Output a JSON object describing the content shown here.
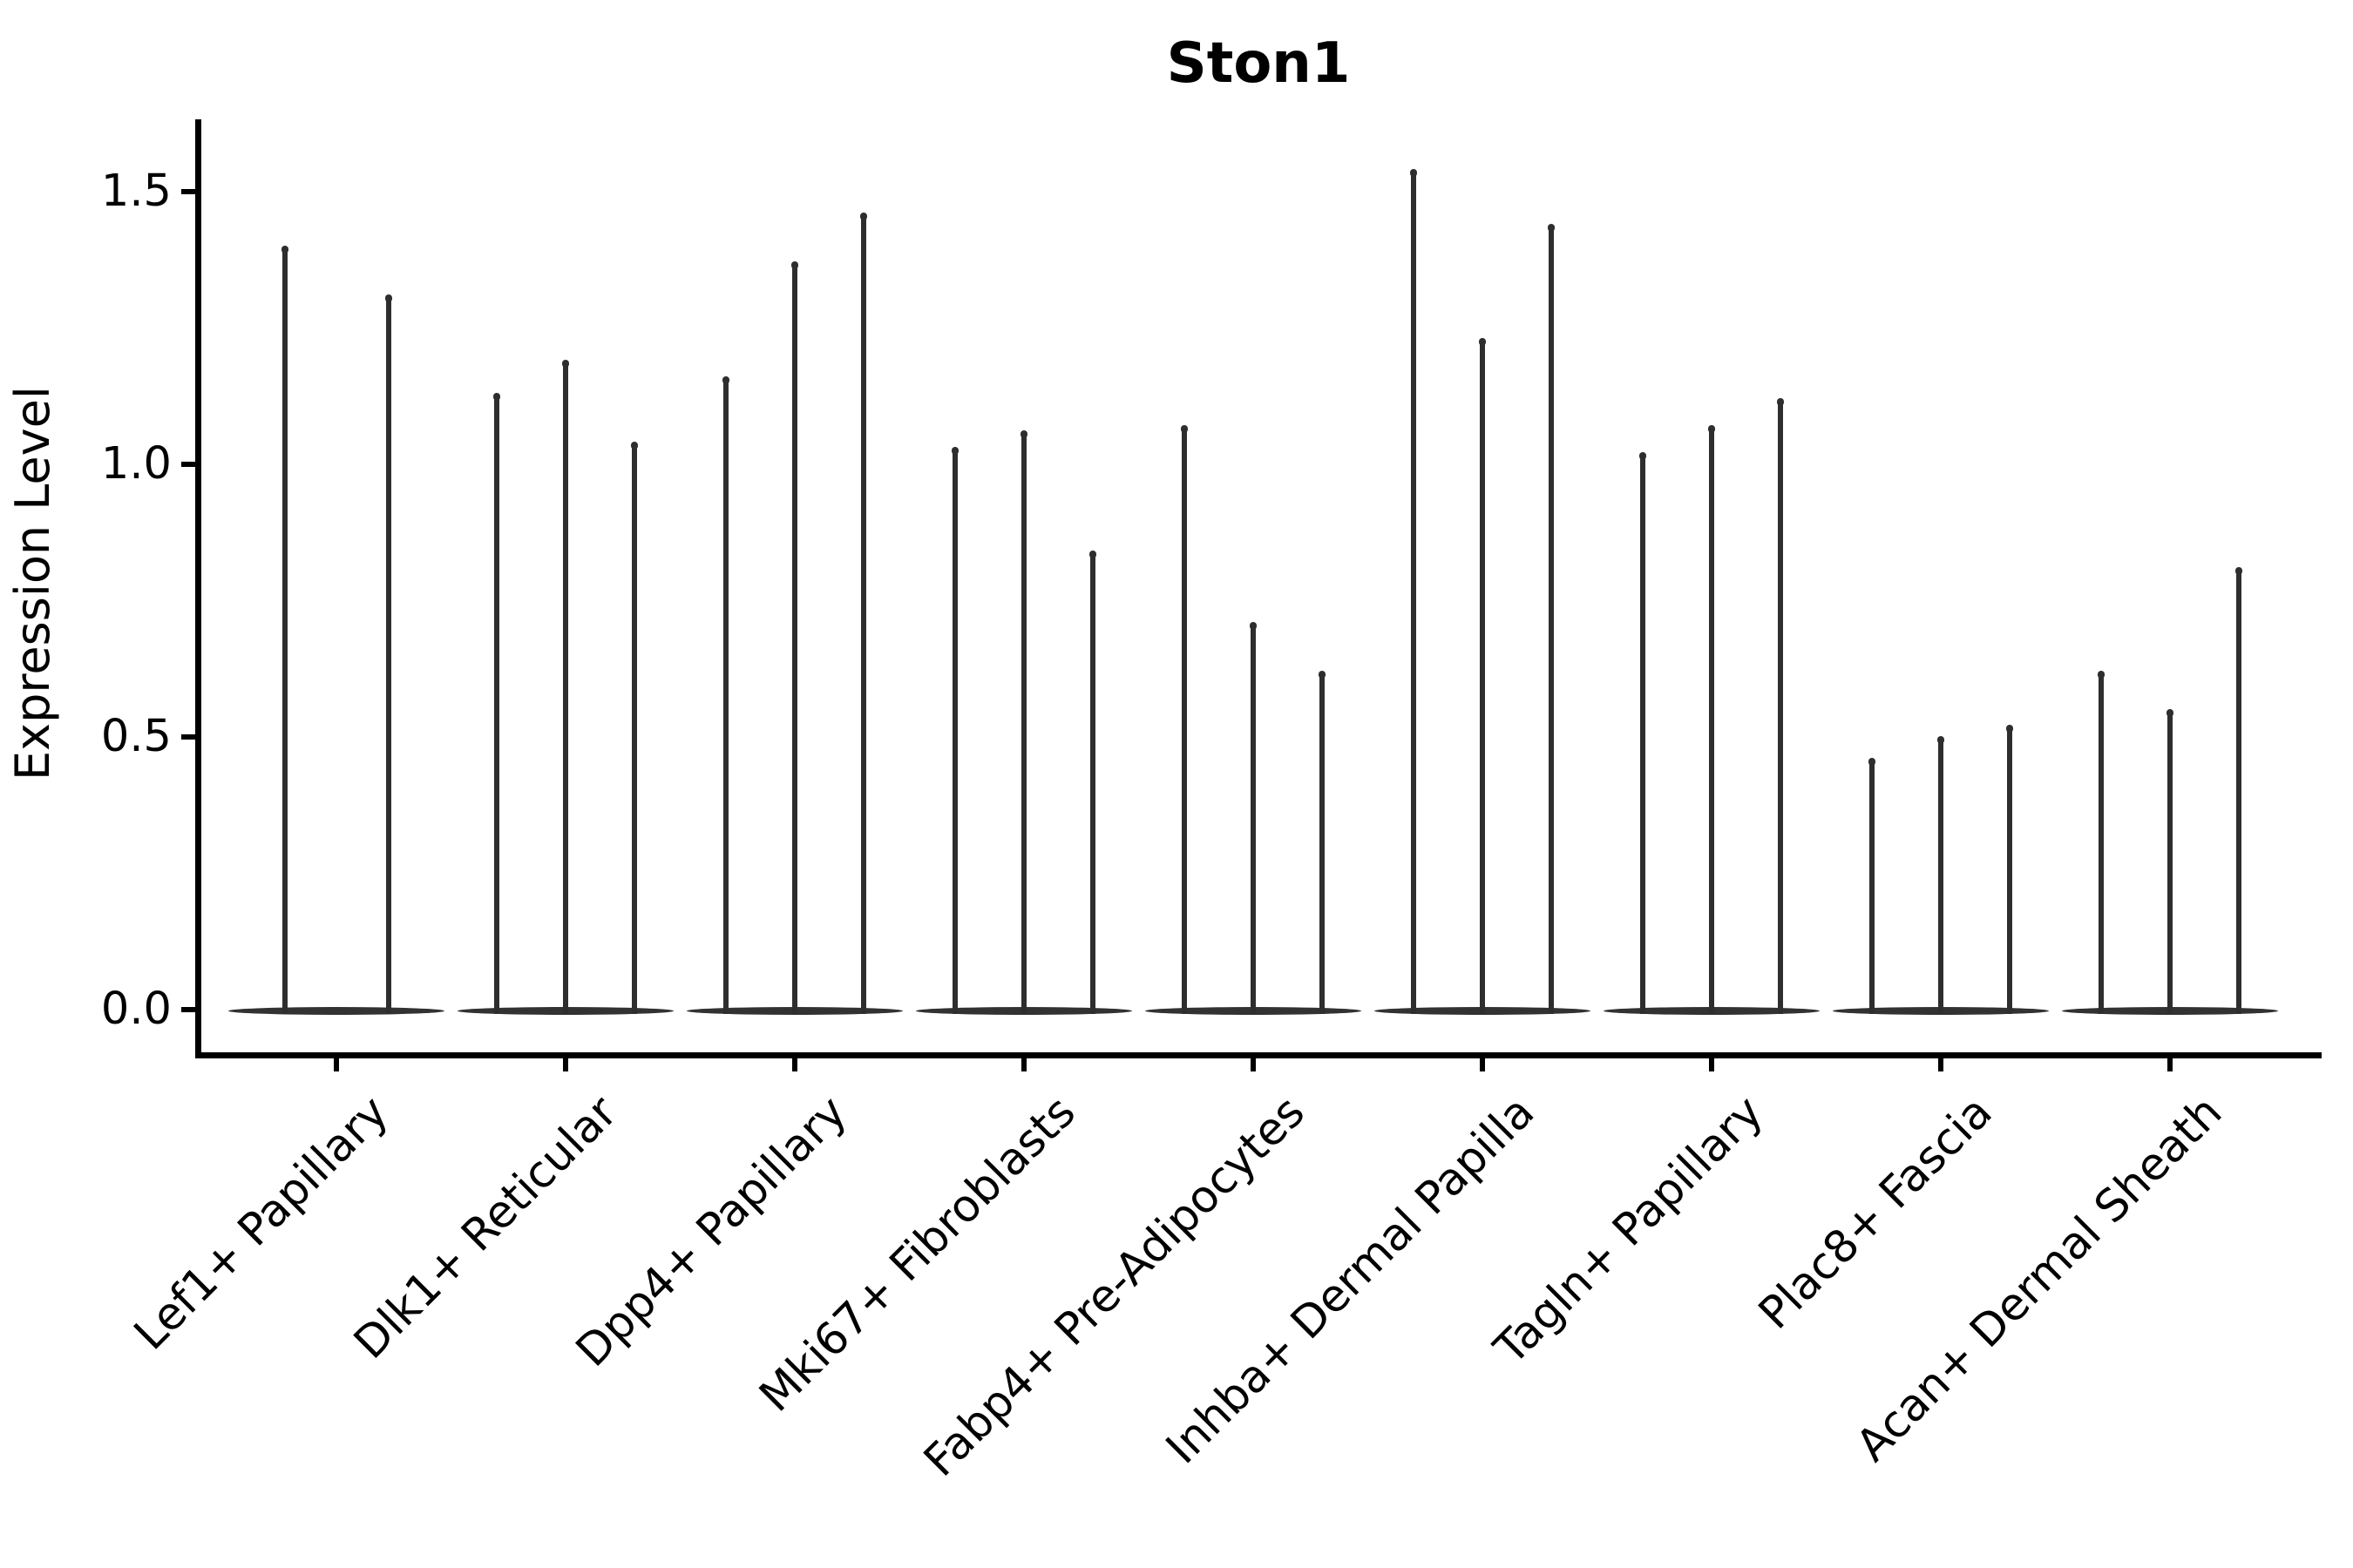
{
  "figure": {
    "title": "Ston1"
  },
  "colors": {
    "background": "#ffffff",
    "axis": "#000000",
    "text": "#000000",
    "violin": "#2e2e2e"
  },
  "chart_data": {
    "type": "violin",
    "title": "Ston1",
    "xlabel": "",
    "ylabel": "Expression Level",
    "grid": false,
    "legend_position": "none",
    "ylim": [
      -0.08,
      1.63
    ],
    "yticks": [
      {
        "value": 0.0,
        "label": "0.0"
      },
      {
        "value": 0.5,
        "label": "0.5"
      },
      {
        "value": 1.0,
        "label": "1.0"
      },
      {
        "value": 1.5,
        "label": "1.5"
      }
    ],
    "x_tick_rotation_deg": 45,
    "categories": [
      "Lef1+ Papillary",
      "Dlk1+ Reticular",
      "Dpp4+ Papillary",
      "Mki67+ Fibroblasts",
      "Fabp4+ Pre-Adipocytes",
      "Inhba+ Dermal Papilla",
      "Tagln+ Papillary",
      "Plac8+ Fascia",
      "Acan+ Dermal Sheath"
    ],
    "groups": [
      {
        "label": "Lef1+ Papillary",
        "violin_maxima": [
          1.4,
          1.31
        ]
      },
      {
        "label": "Dlk1+ Reticular",
        "violin_maxima": [
          1.13,
          1.19,
          1.04
        ]
      },
      {
        "label": "Dpp4+ Papillary",
        "violin_maxima": [
          1.16,
          1.37,
          1.46
        ]
      },
      {
        "label": "Mki67+ Fibroblasts",
        "violin_maxima": [
          1.03,
          1.06,
          0.84
        ]
      },
      {
        "label": "Fabp4+ Pre-Adipocytes",
        "violin_maxima": [
          1.07,
          0.71,
          0.62
        ]
      },
      {
        "label": "Inhba+ Dermal Papilla",
        "violin_maxima": [
          1.54,
          1.23,
          1.44
        ]
      },
      {
        "label": "Tagln+ Papillary",
        "violin_maxima": [
          1.02,
          1.07,
          1.12
        ]
      },
      {
        "label": "Plac8+ Fascia",
        "violin_maxima": [
          0.46,
          0.5,
          0.52
        ]
      },
      {
        "label": "Acan+ Dermal Sheath",
        "violin_maxima": [
          0.62,
          0.55,
          0.81
        ]
      }
    ],
    "description": "Needle-like violins: density concentrated at 0 (flat base) with a thin spike rising to each violin's maximum expression value."
  }
}
